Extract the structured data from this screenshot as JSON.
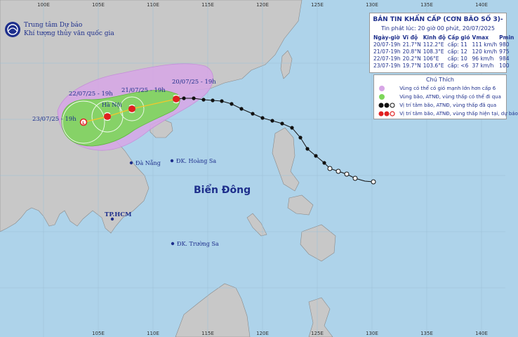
{
  "agency": {
    "line1": "Trung tâm Dự báo",
    "line2": "Khí tượng thủy văn quốc gia"
  },
  "bulletin": {
    "title": "BẢN TIN KHẨN CẤP (CƠN BÃO SỐ 3)-",
    "issued": "Tin phát lúc: 20 giờ 00 phút, 20/07/2025",
    "columns": [
      "Ngày-giờ",
      "Vĩ độ",
      "Kinh độ",
      "Cấp gió",
      "Vmax",
      "Pmin"
    ],
    "rows": [
      [
        "20/07-19h",
        "21.7°N",
        "112.2°E",
        "cấp: 11",
        "111 km/h",
        "980"
      ],
      [
        "21/07-19h",
        "20.8°N",
        "108.3°E",
        "cấp: 12",
        "120 km/h",
        "975"
      ],
      [
        "22/07-19h",
        "20.2°N",
        "106°E",
        "cấp: 10",
        "96 km/h",
        "984"
      ],
      [
        "23/07-19h",
        "19.7°N",
        "103.6°E",
        "cấp: <6",
        "37 km/h",
        "100"
      ]
    ]
  },
  "legend": {
    "title": "Chú Thích",
    "items": [
      "Vùng có thể có gió mạnh lớn hơn cấp 6",
      "Vùng bão, ATNĐ, vùng thấp có thể đi qua",
      "Vị trí tâm bão, ATNĐ, vùng thấp đã qua",
      "Vị trí tâm bão, ATNĐ, vùng thấp hiện tại, dự báo"
    ]
  },
  "map_labels": {
    "sea": "Biển Đông",
    "ha_noi": "Hà Nội",
    "da_nang": "Đà Nẵng",
    "hoang_sa": "ĐK. Hoàng Sa",
    "tphcm": "TP.HCM",
    "truong_sa": "ĐK. Trường Sa"
  },
  "forecast_labels": [
    "20/07/25 - 19h",
    "21/07/25 - 19h",
    "22/07/25 - 19h",
    "23/07/25 - 19h"
  ],
  "grid": {
    "lon_ticks": [
      "100E",
      "105E",
      "110E",
      "115E",
      "120E",
      "125E",
      "130E",
      "135E",
      "140E"
    ]
  },
  "colors": {
    "sea": "#aed3ea",
    "land": "#c8c8c8",
    "wind_zone": "#d7a6e6",
    "cone": "#7dd65a",
    "storm_red": "#e02020",
    "label_blue": "#1e2f8c"
  }
}
